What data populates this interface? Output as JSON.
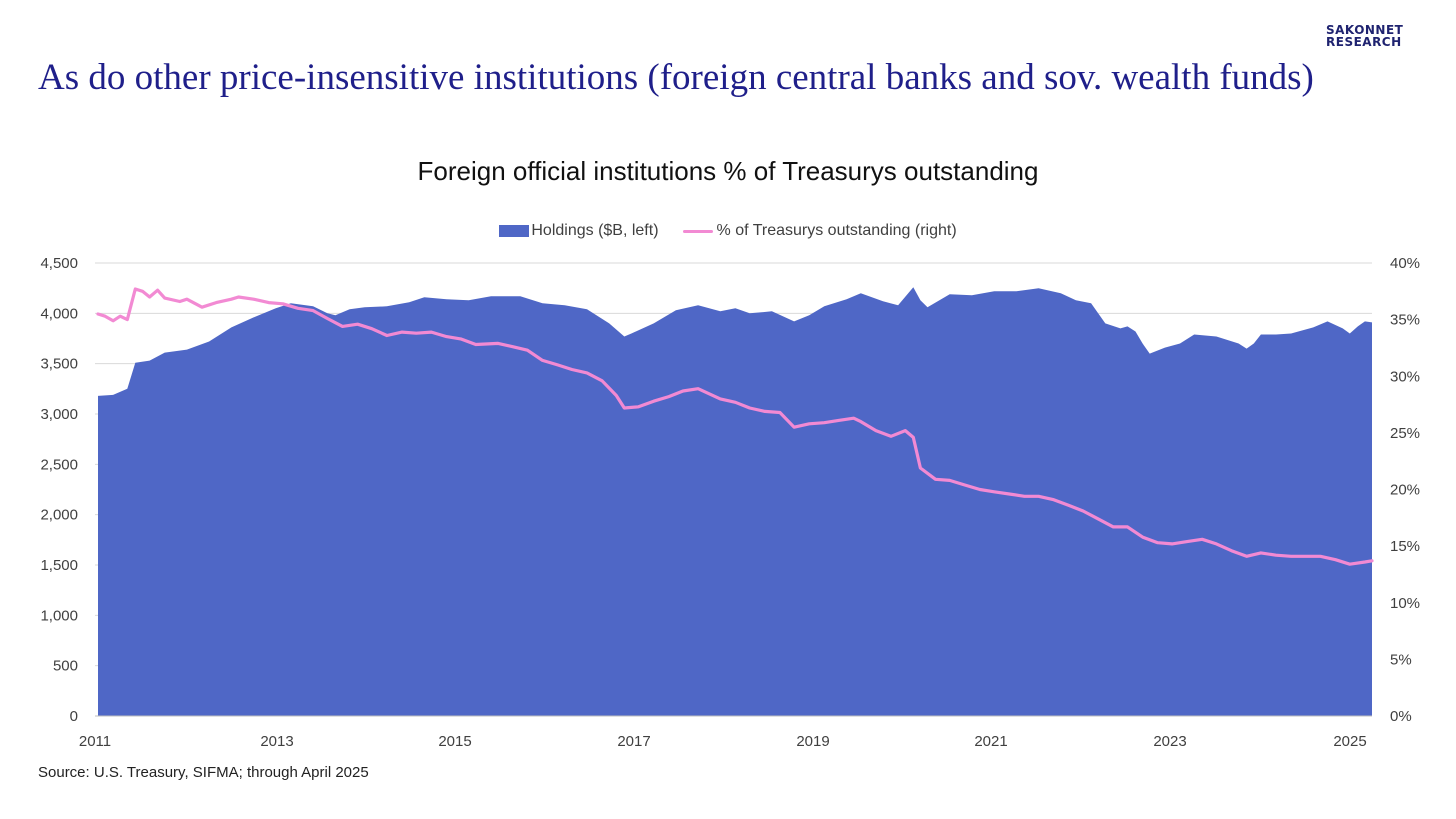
{
  "brand": {
    "line1": "SAKONNET",
    "line2": "RESEARCH",
    "color": "#1f2370"
  },
  "slide_title": "As do other price-insensitive institutions (foreign central banks and sov. wealth funds)",
  "source": "Source: U.S. Treasury, SIFMA; through April 2025",
  "colors": {
    "holdings": "#4f67c6",
    "pct_line": "#f28ad3",
    "grid": "#d9d9d9",
    "title": "#1f1f8a"
  },
  "chart_data": {
    "type": "area",
    "title": "Foreign official institutions % of Treasurys outstanding",
    "legend": [
      "Holdings ($B, left)",
      "% of Treasurys outstanding (right)"
    ],
    "legend_position": "top",
    "grid": true,
    "x_tick_labels": [
      "2011",
      "2013",
      "2015",
      "2017",
      "2019",
      "2021",
      "2023",
      "2025"
    ],
    "x_range": [
      2011.0,
      2025.33
    ],
    "y_left": {
      "range": [
        0,
        4500
      ],
      "ticks": [
        0,
        500,
        1000,
        1500,
        2000,
        2500,
        3000,
        3500,
        4000,
        4500
      ],
      "tick_labels": [
        "0",
        "500",
        "1,000",
        "1,500",
        "2,000",
        "2,500",
        "3,000",
        "3,500",
        "4,000",
        "4,500"
      ]
    },
    "y_right": {
      "range": [
        0,
        40
      ],
      "ticks": [
        0,
        5,
        10,
        15,
        20,
        25,
        30,
        35,
        40
      ],
      "tick_labels": [
        "0%",
        "5%",
        "10%",
        "15%",
        "20%",
        "25%",
        "30%",
        "35%",
        "40%"
      ]
    },
    "series": [
      {
        "name": "Holdings ($B, left)",
        "type": "area",
        "axis": "left",
        "points": [
          [
            2011.0,
            3180
          ],
          [
            2011.17,
            3190
          ],
          [
            2011.33,
            3250
          ],
          [
            2011.42,
            3510
          ],
          [
            2011.58,
            3530
          ],
          [
            2011.75,
            3610
          ],
          [
            2012.0,
            3640
          ],
          [
            2012.25,
            3720
          ],
          [
            2012.5,
            3860
          ],
          [
            2012.75,
            3960
          ],
          [
            2013.0,
            4050
          ],
          [
            2013.17,
            4100
          ],
          [
            2013.42,
            4070
          ],
          [
            2013.58,
            4000
          ],
          [
            2013.67,
            3980
          ],
          [
            2013.83,
            4040
          ],
          [
            2014.0,
            4060
          ],
          [
            2014.25,
            4070
          ],
          [
            2014.5,
            4110
          ],
          [
            2014.67,
            4160
          ],
          [
            2014.92,
            4140
          ],
          [
            2015.17,
            4130
          ],
          [
            2015.42,
            4170
          ],
          [
            2015.75,
            4170
          ],
          [
            2016.0,
            4100
          ],
          [
            2016.25,
            4080
          ],
          [
            2016.5,
            4040
          ],
          [
            2016.75,
            3900
          ],
          [
            2016.92,
            3770
          ],
          [
            2017.0,
            3800
          ],
          [
            2017.25,
            3900
          ],
          [
            2017.5,
            4030
          ],
          [
            2017.75,
            4080
          ],
          [
            2018.0,
            4020
          ],
          [
            2018.17,
            4050
          ],
          [
            2018.33,
            4000
          ],
          [
            2018.58,
            4020
          ],
          [
            2018.83,
            3920
          ],
          [
            2019.0,
            3980
          ],
          [
            2019.17,
            4070
          ],
          [
            2019.42,
            4140
          ],
          [
            2019.58,
            4200
          ],
          [
            2019.83,
            4120
          ],
          [
            2020.0,
            4080
          ],
          [
            2020.17,
            4260
          ],
          [
            2020.25,
            4130
          ],
          [
            2020.33,
            4060
          ],
          [
            2020.58,
            4190
          ],
          [
            2020.83,
            4180
          ],
          [
            2021.08,
            4220
          ],
          [
            2021.33,
            4220
          ],
          [
            2021.58,
            4250
          ],
          [
            2021.83,
            4200
          ],
          [
            2022.0,
            4130
          ],
          [
            2022.17,
            4100
          ],
          [
            2022.33,
            3900
          ],
          [
            2022.5,
            3850
          ],
          [
            2022.58,
            3870
          ],
          [
            2022.67,
            3820
          ],
          [
            2022.75,
            3700
          ],
          [
            2022.83,
            3600
          ],
          [
            2023.0,
            3660
          ],
          [
            2023.17,
            3700
          ],
          [
            2023.33,
            3790
          ],
          [
            2023.58,
            3770
          ],
          [
            2023.83,
            3700
          ],
          [
            2023.92,
            3650
          ],
          [
            2024.0,
            3700
          ],
          [
            2024.08,
            3790
          ],
          [
            2024.25,
            3790
          ],
          [
            2024.42,
            3800
          ],
          [
            2024.67,
            3860
          ],
          [
            2024.83,
            3920
          ],
          [
            2025.0,
            3850
          ],
          [
            2025.08,
            3800
          ],
          [
            2025.17,
            3870
          ],
          [
            2025.25,
            3920
          ],
          [
            2025.33,
            3910
          ]
        ]
      },
      {
        "name": "% of Treasurys outstanding (right)",
        "type": "line",
        "axis": "right",
        "points": [
          [
            2011.0,
            35.5
          ],
          [
            2011.08,
            35.3
          ],
          [
            2011.17,
            34.9
          ],
          [
            2011.25,
            35.3
          ],
          [
            2011.33,
            35.0
          ],
          [
            2011.42,
            37.7
          ],
          [
            2011.5,
            37.5
          ],
          [
            2011.58,
            37.0
          ],
          [
            2011.67,
            37.6
          ],
          [
            2011.75,
            36.9
          ],
          [
            2011.92,
            36.6
          ],
          [
            2012.0,
            36.8
          ],
          [
            2012.17,
            36.1
          ],
          [
            2012.33,
            36.5
          ],
          [
            2012.5,
            36.8
          ],
          [
            2012.58,
            37.0
          ],
          [
            2012.75,
            36.8
          ],
          [
            2012.92,
            36.5
          ],
          [
            2013.08,
            36.4
          ],
          [
            2013.25,
            36.0
          ],
          [
            2013.42,
            35.8
          ],
          [
            2013.58,
            35.1
          ],
          [
            2013.75,
            34.4
          ],
          [
            2013.92,
            34.6
          ],
          [
            2014.08,
            34.2
          ],
          [
            2014.25,
            33.6
          ],
          [
            2014.42,
            33.9
          ],
          [
            2014.58,
            33.8
          ],
          [
            2014.75,
            33.9
          ],
          [
            2014.92,
            33.5
          ],
          [
            2015.08,
            33.3
          ],
          [
            2015.25,
            32.8
          ],
          [
            2015.5,
            32.9
          ],
          [
            2015.67,
            32.6
          ],
          [
            2015.83,
            32.3
          ],
          [
            2016.0,
            31.4
          ],
          [
            2016.17,
            31.0
          ],
          [
            2016.33,
            30.6
          ],
          [
            2016.5,
            30.3
          ],
          [
            2016.67,
            29.6
          ],
          [
            2016.83,
            28.3
          ],
          [
            2016.92,
            27.2
          ],
          [
            2017.08,
            27.3
          ],
          [
            2017.25,
            27.8
          ],
          [
            2017.42,
            28.2
          ],
          [
            2017.58,
            28.7
          ],
          [
            2017.75,
            28.9
          ],
          [
            2018.0,
            28.0
          ],
          [
            2018.17,
            27.7
          ],
          [
            2018.33,
            27.2
          ],
          [
            2018.5,
            26.9
          ],
          [
            2018.67,
            26.8
          ],
          [
            2018.83,
            25.5
          ],
          [
            2019.0,
            25.8
          ],
          [
            2019.17,
            25.9
          ],
          [
            2019.33,
            26.1
          ],
          [
            2019.5,
            26.3
          ],
          [
            2019.58,
            26.0
          ],
          [
            2019.75,
            25.2
          ],
          [
            2019.92,
            24.7
          ],
          [
            2020.08,
            25.2
          ],
          [
            2020.17,
            24.6
          ],
          [
            2020.25,
            21.9
          ],
          [
            2020.42,
            20.9
          ],
          [
            2020.58,
            20.8
          ],
          [
            2020.75,
            20.4
          ],
          [
            2020.92,
            20.0
          ],
          [
            2021.08,
            19.8
          ],
          [
            2021.25,
            19.6
          ],
          [
            2021.42,
            19.4
          ],
          [
            2021.58,
            19.4
          ],
          [
            2021.75,
            19.1
          ],
          [
            2021.92,
            18.6
          ],
          [
            2022.08,
            18.1
          ],
          [
            2022.25,
            17.4
          ],
          [
            2022.42,
            16.7
          ],
          [
            2022.58,
            16.7
          ],
          [
            2022.75,
            15.8
          ],
          [
            2022.92,
            15.3
          ],
          [
            2023.08,
            15.2
          ],
          [
            2023.25,
            15.4
          ],
          [
            2023.42,
            15.6
          ],
          [
            2023.58,
            15.2
          ],
          [
            2023.75,
            14.6
          ],
          [
            2023.92,
            14.1
          ],
          [
            2024.08,
            14.4
          ],
          [
            2024.25,
            14.2
          ],
          [
            2024.42,
            14.1
          ],
          [
            2024.58,
            14.1
          ],
          [
            2024.75,
            14.1
          ],
          [
            2024.92,
            13.8
          ],
          [
            2025.08,
            13.4
          ],
          [
            2025.25,
            13.6
          ],
          [
            2025.33,
            13.7
          ]
        ]
      }
    ]
  }
}
